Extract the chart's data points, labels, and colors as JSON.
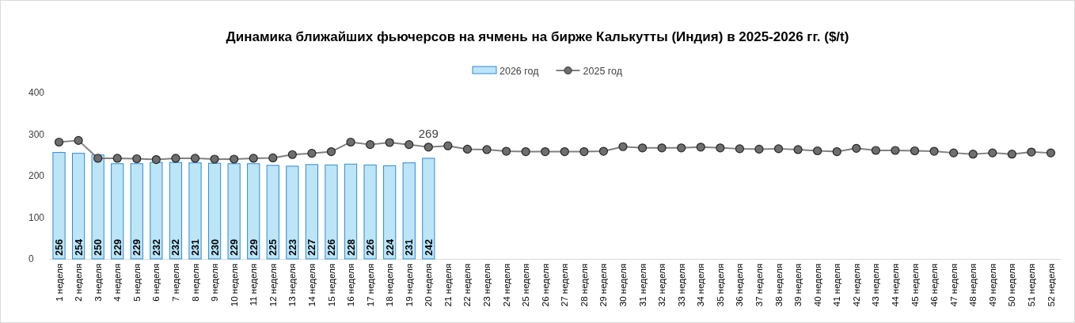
{
  "chart_data": {
    "type": "bar",
    "title": "Динамика ближайших фьючерсов на ячмень на бирже Калькутты (Индия) в 2025-2026 гг. ($/t)",
    "categories": [
      "1 неделя",
      "2 неделя",
      "3 неделя",
      "4 неделя",
      "5 неделя",
      "6 неделя",
      "7 неделя",
      "8 неделя",
      "9 неделя",
      "10 неделя",
      "11 неделя",
      "12 неделя",
      "13 неделя",
      "14 неделя",
      "15 неделя",
      "16 неделя",
      "17 неделя",
      "18 неделя",
      "19 неделя",
      "20 неделя",
      "21 неделя",
      "22 неделя",
      "23 неделя",
      "24 неделя",
      "25 неделя",
      "26 неделя",
      "27 неделя",
      "28 неделя",
      "29 неделя",
      "30 неделя",
      "31 неделя",
      "32 неделя",
      "33 неделя",
      "34 неделя",
      "35 неделя",
      "36 неделя",
      "37 неделя",
      "38 неделя",
      "39 неделя",
      "40 неделя",
      "41 неделя",
      "42 неделя",
      "43 неделя",
      "44 неделя",
      "45 неделя",
      "46 неделя",
      "47 неделя",
      "48 неделя",
      "49 неделя",
      "50 неделя",
      "51 неделя",
      "52 неделя"
    ],
    "series": [
      {
        "name": "2026 год",
        "color": "#bde5f8",
        "values": [
          256,
          254,
          250,
          229,
          229,
          232,
          232,
          231,
          230,
          229,
          229,
          225,
          223,
          227,
          226,
          228,
          226,
          224,
          231,
          242,
          null,
          null,
          null,
          null,
          null,
          null,
          null,
          null,
          null,
          null,
          null,
          null,
          null,
          null,
          null,
          null,
          null,
          null,
          null,
          null,
          null,
          null,
          null,
          null,
          null,
          null,
          null,
          null,
          null,
          null,
          null,
          null
        ],
        "value_labels": [
          "256",
          "254",
          "250",
          "229",
          "229",
          "232",
          "232",
          "231",
          "230",
          "229",
          "229",
          "225",
          "223",
          "227",
          "226",
          "228",
          "226",
          "224",
          "231",
          "242",
          null,
          null,
          null,
          null,
          null,
          null,
          null,
          null,
          null,
          null,
          null,
          null,
          null,
          null,
          null,
          null,
          null,
          null,
          null,
          null,
          null,
          null,
          null,
          null,
          null,
          null,
          null,
          null,
          null,
          null,
          null,
          null
        ]
      },
      {
        "name": "2025 год",
        "type": "line",
        "color": "#808080",
        "marker": "circle",
        "values": [
          281,
          285,
          242,
          242,
          241,
          239,
          242,
          242,
          240,
          240,
          242,
          243,
          251,
          254,
          258,
          281,
          275,
          280,
          275,
          269,
          272,
          264,
          263,
          259,
          258,
          258,
          258,
          258,
          259,
          270,
          267,
          267,
          267,
          269,
          267,
          265,
          264,
          265,
          263,
          260,
          258,
          266,
          261,
          261,
          260,
          259,
          255,
          252,
          255,
          252,
          257,
          255
        ],
        "value_labels": [
          null,
          null,
          null,
          null,
          null,
          null,
          null,
          null,
          null,
          null,
          null,
          null,
          null,
          null,
          null,
          null,
          null,
          null,
          null,
          "269",
          null,
          null,
          null,
          null,
          null,
          null,
          null,
          null,
          null,
          null,
          null,
          null,
          null,
          null,
          null,
          null,
          null,
          null,
          null,
          null,
          null,
          null,
          null,
          null,
          null,
          null,
          null,
          null,
          null,
          null,
          null,
          null
        ]
      }
    ],
    "ylim": [
      0,
      400
    ],
    "yticks": [
      0,
      100,
      200,
      300,
      400
    ],
    "grid": false,
    "legend": "top"
  }
}
